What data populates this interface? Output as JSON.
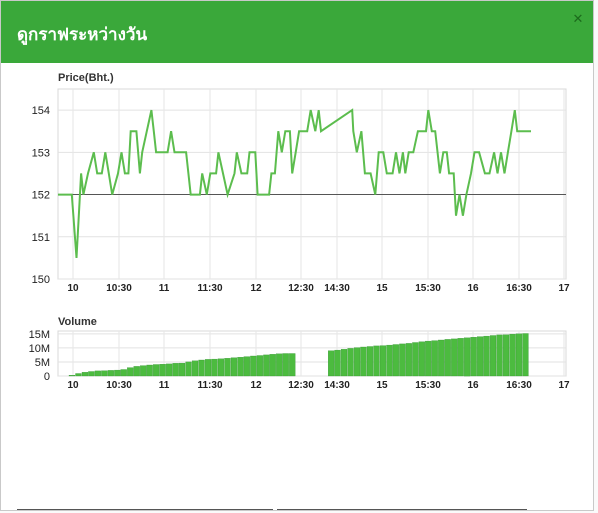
{
  "dialog": {
    "title": "ดูกราฟระหว่างวัน",
    "close_icon": "close-icon",
    "accent_color": "#3aa83a"
  },
  "chart_data": [
    {
      "type": "line",
      "title": "Price(Bht.)",
      "x_tick_labels": [
        "10",
        "10:30",
        "11",
        "11:30",
        "12",
        "12:30",
        "14:30",
        "15",
        "15:30",
        "16",
        "16:30",
        "17"
      ],
      "ylim": [
        150,
        154.5
      ],
      "y_ticks": [
        150,
        151,
        152,
        153,
        154
      ],
      "reference_line": 152,
      "grid": true,
      "series": [
        {
          "color": "#5cbd4e",
          "points": [
            [
              0,
              152
            ],
            [
              0.6,
              152
            ],
            [
              0.9,
              152
            ],
            [
              1.2,
              152
            ],
            [
              1.6,
              150.5
            ],
            [
              2,
              152.5
            ],
            [
              2.2,
              152
            ],
            [
              2.6,
              152.5
            ],
            [
              3.1,
              153
            ],
            [
              3.4,
              152.5
            ],
            [
              3.8,
              152.5
            ],
            [
              4.1,
              153
            ],
            [
              4.4,
              152.5
            ],
            [
              4.7,
              152
            ],
            [
              5.2,
              152.5
            ],
            [
              5.5,
              153
            ],
            [
              5.8,
              152.5
            ],
            [
              6.1,
              152.5
            ],
            [
              6.3,
              153.5
            ],
            [
              6.8,
              153.5
            ],
            [
              7.1,
              152.5
            ],
            [
              7.3,
              153
            ],
            [
              7.7,
              153.5
            ],
            [
              8.1,
              154
            ],
            [
              8.3,
              153.5
            ],
            [
              8.5,
              153
            ],
            [
              9.5,
              153
            ],
            [
              9.8,
              153.5
            ],
            [
              10.1,
              153
            ],
            [
              10.4,
              153
            ],
            [
              10.7,
              153
            ],
            [
              11.1,
              153
            ],
            [
              11.3,
              152.5
            ],
            [
              11.5,
              152
            ],
            [
              12.3,
              152
            ],
            [
              12.5,
              152.5
            ],
            [
              12.9,
              152
            ],
            [
              13.2,
              152.5
            ],
            [
              13.7,
              152.5
            ],
            [
              13.9,
              153
            ],
            [
              14.3,
              152.5
            ],
            [
              14.7,
              152
            ],
            [
              15.3,
              152.5
            ],
            [
              15.5,
              153
            ],
            [
              15.9,
              152.5
            ],
            [
              16.4,
              152.5
            ],
            [
              16.6,
              153
            ],
            [
              17.1,
              153
            ],
            [
              17.3,
              152
            ],
            [
              17.7,
              152
            ],
            [
              18.3,
              152
            ],
            [
              18.5,
              152.5
            ],
            [
              18.8,
              152.5
            ],
            [
              19.1,
              153.5
            ],
            [
              19.4,
              153
            ],
            [
              19.7,
              153.5
            ],
            [
              20.1,
              153.5
            ],
            [
              20.3,
              152.5
            ],
            [
              20.6,
              153
            ],
            [
              20.9,
              153.5
            ],
            [
              21.2,
              153.5
            ],
            [
              21.6,
              153.5
            ],
            [
              21.9,
              154
            ],
            [
              22.3,
              153.5
            ],
            [
              22.6,
              154
            ],
            [
              22.8,
              153.5
            ],
            [
              25.5,
              154
            ],
            [
              25.6,
              153.5
            ],
            [
              25.9,
              153
            ],
            [
              26.3,
              153.5
            ],
            [
              26.6,
              152.5
            ],
            [
              27.1,
              152.5
            ],
            [
              27.5,
              152
            ],
            [
              27.8,
              153
            ],
            [
              28.2,
              153
            ],
            [
              28.5,
              152.5
            ],
            [
              29,
              152.5
            ],
            [
              29.3,
              153
            ],
            [
              29.6,
              152.5
            ],
            [
              29.9,
              153
            ],
            [
              30.1,
              152.5
            ],
            [
              30.4,
              153
            ],
            [
              30.8,
              153
            ],
            [
              31.2,
              153.5
            ],
            [
              31.9,
              153.5
            ],
            [
              32.1,
              154
            ],
            [
              32.4,
              153.5
            ],
            [
              32.7,
              153.5
            ],
            [
              33.1,
              152.5
            ],
            [
              33.4,
              153
            ],
            [
              33.7,
              153
            ],
            [
              33.9,
              152.5
            ],
            [
              34.3,
              152.5
            ],
            [
              34.5,
              151.5
            ],
            [
              34.8,
              152
            ],
            [
              35.1,
              151.5
            ],
            [
              35.4,
              152
            ],
            [
              35.8,
              152.5
            ],
            [
              36.1,
              153
            ],
            [
              36.5,
              153
            ],
            [
              37,
              152.5
            ],
            [
              37.4,
              152.5
            ],
            [
              37.8,
              153
            ],
            [
              38.1,
              152.5
            ],
            [
              38.4,
              153
            ],
            [
              38.7,
              152.5
            ],
            [
              39,
              153
            ],
            [
              39.3,
              153.5
            ],
            [
              39.6,
              154
            ],
            [
              39.8,
              153.5
            ],
            [
              41,
              153.5
            ]
          ]
        }
      ]
    },
    {
      "type": "bar",
      "title": "Volume",
      "x_tick_labels": [
        "10",
        "10:30",
        "11",
        "11:30",
        "12",
        "12:30",
        "14:30",
        "15",
        "15:30",
        "16",
        "16:30",
        "17"
      ],
      "ylim": [
        0,
        16
      ],
      "y_tick_labels": [
        "15M",
        "10M",
        "5M",
        "0"
      ],
      "y_ticks": [
        15,
        10,
        5,
        0
      ],
      "grid": true,
      "series": [
        {
          "color": "#4cbb3f",
          "description": "cumulative volume (millions)",
          "values": [
            0.3,
            0.9,
            1.3,
            1.6,
            1.8,
            1.9,
            2.0,
            2.1,
            2.3,
            3.0,
            3.4,
            3.7,
            3.9,
            4.1,
            4.2,
            4.3,
            4.5,
            4.6,
            5.0,
            5.4,
            5.7,
            5.9,
            6.0,
            6.1,
            6.3,
            6.5,
            6.7,
            6.9,
            7.1,
            7.3,
            7.5,
            7.7,
            7.9,
            8.0,
            8.0,
            null,
            null,
            null,
            null,
            null,
            9.0,
            9.2,
            9.5,
            9.8,
            10.1,
            10.3,
            10.5,
            10.7,
            10.8,
            11.0,
            11.2,
            11.4,
            11.6,
            11.9,
            12.2,
            12.4,
            12.6,
            12.8,
            13.0,
            13.2,
            13.4,
            13.6,
            13.8,
            14.0,
            14.2,
            14.4,
            14.6,
            14.7,
            14.9,
            15.0,
            15.1
          ]
        }
      ]
    }
  ],
  "bottom_bar": {
    "separator_color": "#555555"
  }
}
